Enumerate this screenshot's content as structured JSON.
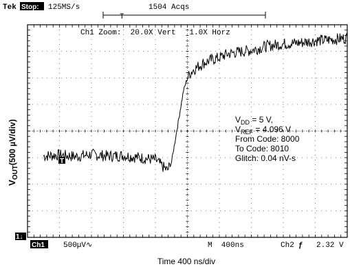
{
  "header": {
    "brand": "Tek",
    "run_state": "Stop:",
    "sample_rate": "125MS/s",
    "acqs": "1504 Acqs",
    "trigger_marker": "T"
  },
  "zoom_line": "Ch1 Zoom:  20.0X Vert   1.0X Horz",
  "annotations": {
    "vdd_main": "V",
    "vdd_sub": "DD",
    "vdd_rest": " = 5 V,",
    "vref_main": "V",
    "vref_sub": "REF",
    "vref_rest": " = 4.096 V",
    "from_code": "From Code: 8000",
    "to_code": "To Code: 8010",
    "glitch": "Glitch: 0.04 nV-s"
  },
  "ch_marker": "1↓",
  "trace_trigger_marker": "T",
  "footer": {
    "ch_label": "Ch1",
    "ch_scale": "500µV∿",
    "timebase": "M  400ns",
    "trig_source": "Ch2",
    "trig_slope": "ƒ",
    "trig_level": "2.32 V"
  },
  "chart_data": {
    "type": "line",
    "title": "",
    "xlabel": "Time 400 ns/div",
    "ylabel_main": "V",
    "ylabel_sub": "OUT",
    "ylabel_rest": "(500 µV/div)",
    "xlim": [
      0,
      4000
    ],
    "ylim": [
      -2000,
      2000
    ],
    "x_divisions": 10,
    "y_divisions": 8,
    "grid": true,
    "series": [
      {
        "x": [
          0,
          200,
          400,
          600,
          800,
          1000,
          1200,
          1400,
          1600,
          1700,
          1750,
          1800,
          1850,
          1900,
          1950,
          2000,
          2050,
          2100,
          2200,
          2300,
          2400,
          2500,
          2600,
          2800,
          3000,
          3200,
          3400,
          3600,
          3800,
          4000
        ],
        "values": [
          -430,
          -470,
          -450,
          -480,
          -440,
          -470,
          -460,
          -500,
          -540,
          -680,
          -740,
          -600,
          -150,
          300,
          750,
          1000,
          1120,
          1180,
          1280,
          1340,
          1380,
          1450,
          1480,
          1520,
          1600,
          1640,
          1660,
          1700,
          1720,
          1750
        ]
      }
    ]
  }
}
